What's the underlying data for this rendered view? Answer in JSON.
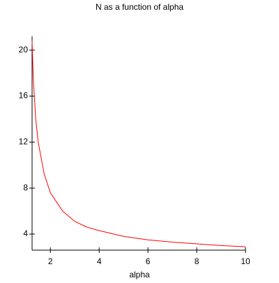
{
  "chart_data": {
    "type": "line",
    "title": "N as a function of alpha",
    "xlabel": "alpha",
    "x": [
      1.25,
      1.3,
      1.4,
      1.5,
      1.75,
      2,
      2.5,
      3,
      3.5,
      4,
      5,
      6,
      7,
      8,
      9,
      10
    ],
    "series": [
      {
        "color": "#ff0000",
        "values": [
          20.8,
          17.5,
          14,
          12,
          9.2,
          7.6,
          6,
          5.1,
          4.6,
          4.3,
          3.8,
          3.5,
          3.3,
          3.15,
          3.0,
          2.9
        ]
      }
    ],
    "xlim": [
      1.25,
      10
    ],
    "xticks": [
      2,
      4,
      6,
      8,
      10
    ],
    "ylim": [
      2.6,
      21.2
    ],
    "yticks": [
      4,
      8,
      12,
      16,
      20
    ]
  }
}
